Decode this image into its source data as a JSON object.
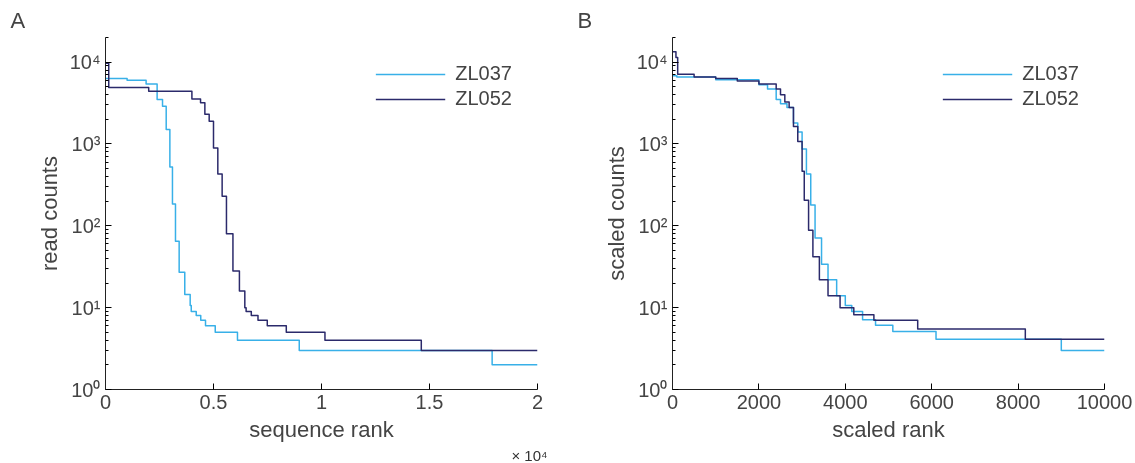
{
  "chart_data": [
    {
      "type": "step",
      "title": "A",
      "xlabel": "sequence rank",
      "ylabel": "read counts",
      "annotations": [
        "× 10⁴"
      ],
      "log": "y",
      "grid": false,
      "legend": "top right",
      "xlim": [
        0,
        2
      ],
      "xticks": [
        0,
        0.5,
        1,
        1.5,
        2
      ],
      "ylim": [
        1,
        20000
      ],
      "yticks": [
        {
          "value": 1,
          "label": "10⁰"
        },
        {
          "value": 10,
          "label": "10¹"
        },
        {
          "value": 100,
          "label": "10²"
        },
        {
          "value": 1000,
          "label": "10³"
        },
        {
          "value": 10000,
          "label": "10⁴"
        }
      ],
      "series": [
        {
          "name": "ZL037",
          "color": "#38b0e8",
          "x": [
            0,
            0.1,
            0.188,
            0.239,
            0.264,
            0.281,
            0.298,
            0.31,
            0.324,
            0.341,
            0.367,
            0.392,
            0.397,
            0.42,
            0.441,
            0.463,
            0.508,
            0.611,
            0.897,
            1.79,
            2.0
          ],
          "values": [
            6300,
            6000,
            5400,
            3500,
            2900,
            1500,
            525,
            185,
            65,
            27,
            14.5,
            10.6,
            9,
            8,
            7,
            6,
            5,
            4,
            3,
            2,
            2
          ]
        },
        {
          "name": "ZL052",
          "color": "#2b2a6b",
          "x": [
            0,
            0.015,
            0.2,
            0.4,
            0.44,
            0.46,
            0.48,
            0.5,
            0.52,
            0.54,
            0.56,
            0.59,
            0.62,
            0.645,
            0.651,
            0.675,
            0.706,
            0.749,
            0.837,
            1.016,
            1.462,
            2.0
          ],
          "values": [
            9700,
            4900,
            4400,
            3550,
            3200,
            2300,
            1900,
            890,
            430,
            230,
            80,
            28,
            16,
            10,
            9,
            8,
            7,
            6,
            5,
            4,
            3,
            3
          ]
        }
      ]
    },
    {
      "type": "step",
      "title": "B",
      "xlabel": "scaled rank",
      "ylabel": "scaled counts",
      "log": "y",
      "grid": false,
      "legend": "top right",
      "xlim": [
        0,
        10000
      ],
      "xticks": [
        0,
        2000,
        4000,
        6000,
        8000,
        10000
      ],
      "ylim": [
        1,
        20000
      ],
      "yticks": [
        {
          "value": 1,
          "label": "10⁰"
        },
        {
          "value": 10,
          "label": "10¹"
        },
        {
          "value": 100,
          "label": "10²"
        },
        {
          "value": 1000,
          "label": "10³"
        },
        {
          "value": 10000,
          "label": "10⁴"
        }
      ],
      "series": [
        {
          "name": "ZL037",
          "color": "#38b0e8",
          "x": [
            0,
            100,
            1000,
            2000,
            2200,
            2400,
            2500,
            2650,
            2800,
            2900,
            3000,
            3100,
            3200,
            3300,
            3450,
            3600,
            3800,
            4000,
            4150,
            4400,
            4700,
            5100,
            6100,
            9000,
            10000
          ],
          "values": [
            6800,
            6600,
            6100,
            5300,
            4700,
            3500,
            3100,
            2800,
            1800,
            1400,
            870,
            430,
            180,
            71,
            34,
            22,
            14,
            10.6,
            9,
            7.1,
            6.1,
            5.1,
            4.1,
            3,
            3
          ]
        },
        {
          "name": "ZL052",
          "color": "#2b2a6b",
          "x": [
            0,
            80,
            120,
            500,
            1000,
            1500,
            2000,
            2400,
            2500,
            2600,
            2700,
            2800,
            2900,
            3000,
            3050,
            3150,
            3250,
            3400,
            3600,
            3879,
            4197,
            4662,
            5676,
            8167,
            10000
          ],
          "values": [
            13400,
            11400,
            7100,
            6600,
            6300,
            5900,
            5400,
            4700,
            4000,
            3250,
            2800,
            1640,
            1070,
            465,
            205,
            88,
            42,
            22,
            14,
            10,
            8.2,
            7,
            5.5,
            4.1,
            4.1
          ]
        }
      ]
    }
  ]
}
